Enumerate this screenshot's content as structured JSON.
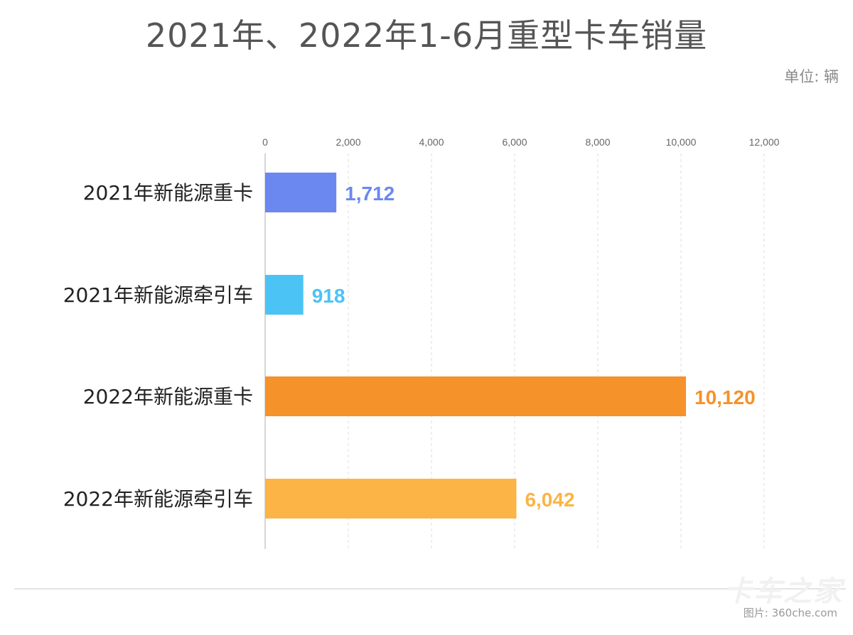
{
  "title": "2021年、2022年1-6月重型卡车销量",
  "unit_label": "单位: 辆",
  "watermark": "卡车之家",
  "source": "图片: 360che.com",
  "chart_data": {
    "type": "bar",
    "orientation": "horizontal",
    "categories": [
      "2021年新能源重卡",
      "2021年新能源牵引车",
      "2022年新能源重卡",
      "2022年新能源牵引车"
    ],
    "values": [
      1712,
      918,
      10120,
      6042
    ],
    "value_labels": [
      "1,712",
      "918",
      "10,120",
      "6,042"
    ],
    "colors": [
      "#6b87f0",
      "#4cc3f5",
      "#f5922a",
      "#fbb445"
    ],
    "xlim": [
      0,
      12000
    ],
    "xticks": [
      0,
      2000,
      4000,
      6000,
      8000,
      10000,
      12000
    ],
    "xtick_labels": [
      "0",
      "2,000",
      "4,000",
      "6,000",
      "8,000",
      "10,000",
      "12,000"
    ],
    "axis_position": "top",
    "grid": true
  }
}
